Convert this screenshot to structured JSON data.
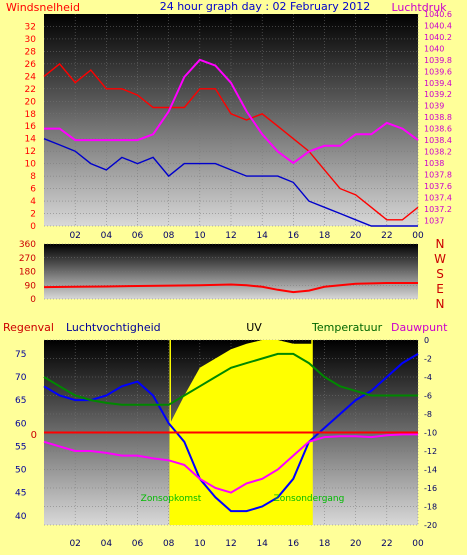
{
  "title": "24 hour graph day : 02 February 2012",
  "chart_data": [
    {
      "type": "line",
      "panel": "wind-pressure",
      "xlabel": "",
      "x_ticks": [
        "02",
        "04",
        "06",
        "08",
        "10",
        "12",
        "14",
        "16",
        "18",
        "20",
        "22",
        "00"
      ],
      "left_axis": {
        "label": "Windsnelheid",
        "range": [
          0,
          34
        ],
        "ticks": [
          0,
          2,
          4,
          6,
          8,
          10,
          12,
          14,
          16,
          18,
          20,
          22,
          24,
          26,
          28,
          30,
          32
        ],
        "color": "#ff0000"
      },
      "right_axis": {
        "label": "Luchtdruk",
        "range": [
          1036.9,
          1040.6
        ],
        "ticks": [
          1037,
          1037.2,
          1037.4,
          1037.6,
          1037.8,
          1038,
          1038.2,
          1038.4,
          1038.6,
          1038.8,
          1039,
          1039.2,
          1039.4,
          1039.6,
          1039.8,
          1040,
          1040.2,
          1040.4,
          1040.6
        ],
        "color": "#cc00cc"
      },
      "series": [
        {
          "color": "#ff0000",
          "axis": "left",
          "x": [
            0,
            1,
            2,
            3,
            4,
            5,
            6,
            7,
            8,
            9,
            10,
            11,
            12,
            13,
            14,
            15,
            16,
            17,
            18,
            19,
            20,
            21,
            22,
            23,
            24
          ],
          "y": [
            24,
            26,
            23,
            25,
            22,
            22,
            21,
            19,
            19,
            19,
            22,
            22,
            18,
            17,
            18,
            16,
            14,
            12,
            9,
            6,
            5,
            3,
            1,
            1,
            3
          ]
        },
        {
          "color": "#0000cc",
          "axis": "left",
          "x": [
            0,
            1,
            2,
            3,
            4,
            5,
            6,
            7,
            8,
            9,
            10,
            11,
            12,
            13,
            14,
            15,
            16,
            17,
            18,
            19,
            20,
            21,
            22,
            23,
            24
          ],
          "y": [
            14,
            13,
            12,
            10,
            9,
            11,
            10,
            11,
            8,
            10,
            10,
            10,
            9,
            8,
            8,
            8,
            7,
            4,
            3,
            2,
            1,
            0,
            0,
            0,
            0
          ]
        },
        {
          "color": "#ff00ff",
          "axis": "right",
          "x": [
            0,
            1,
            2,
            3,
            4,
            5,
            6,
            7,
            8,
            9,
            10,
            11,
            12,
            13,
            14,
            15,
            16,
            17,
            18,
            19,
            20,
            21,
            22,
            23,
            24
          ],
          "y": [
            1038.6,
            1038.6,
            1038.4,
            1038.4,
            1038.4,
            1038.4,
            1038.4,
            1038.5,
            1038.9,
            1039.5,
            1039.8,
            1039.7,
            1039.4,
            1038.9,
            1038.5,
            1038.2,
            1038,
            1038.2,
            1038.3,
            1038.3,
            1038.5,
            1038.5,
            1038.7,
            1038.6,
            1038.4
          ]
        }
      ]
    },
    {
      "type": "line",
      "panel": "wind-direction",
      "left_axis": {
        "range": [
          0,
          360
        ],
        "ticks": [
          0,
          90,
          180,
          270,
          360
        ]
      },
      "right_labels": [
        "N",
        "W",
        "S",
        "E",
        "N"
      ],
      "series": [
        {
          "color": "#ff0000",
          "x": [
            0,
            2,
            4,
            6,
            8,
            10,
            12,
            13,
            14,
            15,
            16,
            17,
            18,
            19,
            20,
            22,
            24
          ],
          "y": [
            78,
            80,
            82,
            85,
            88,
            90,
            95,
            90,
            80,
            60,
            45,
            55,
            80,
            90,
            100,
            105,
            105
          ]
        }
      ]
    },
    {
      "type": "line",
      "panel": "humidity-uv-temp",
      "x_ticks": [
        "02",
        "04",
        "06",
        "08",
        "10",
        "12",
        "14",
        "16",
        "18",
        "20",
        "22",
        "00"
      ],
      "left_axis": {
        "range": [
          38,
          78
        ],
        "ticks": [
          40,
          45,
          50,
          55,
          60,
          65,
          70,
          75
        ]
      },
      "right_axis": {
        "range": [
          -20,
          0
        ],
        "ticks": [
          0,
          -2,
          -4,
          -6,
          -8,
          -10,
          -12,
          -14,
          -16,
          -18,
          -20
        ]
      },
      "rain_zero_label": "0",
      "legend": [
        "Regenval",
        "Luchtvochtigheid",
        "UV",
        "Temperatuur",
        "Dauwpunt"
      ],
      "legend_colors": [
        "#cc0000",
        "#000099",
        "#000000",
        "#006600",
        "#cc00cc"
      ],
      "annotations": [
        "Zonsopkomst",
        "Zonsondergang"
      ],
      "sunrise_hour": 8.1,
      "sunset_hour": 17.2,
      "series": [
        {
          "color": "#ffff00",
          "axis": "uv",
          "x": [
            8.1,
            9,
            10,
            11,
            12,
            13,
            14,
            15,
            16,
            17,
            17.2
          ],
          "y": [
            0.55,
            0.7,
            0.85,
            0.9,
            0.95,
            0.98,
            1,
            1,
            0.98,
            0.98,
            0.98
          ]
        },
        {
          "color": "#0000ff",
          "axis": "left",
          "x": [
            0,
            1,
            2,
            3,
            4,
            5,
            6,
            7,
            8,
            8.5,
            9,
            10,
            11,
            12,
            13,
            14,
            15,
            16,
            17,
            18,
            19,
            20,
            21,
            22,
            23,
            24
          ],
          "y": [
            68,
            66,
            65,
            65,
            66,
            68,
            69,
            66,
            60,
            58,
            56,
            48,
            44,
            41,
            41,
            42,
            44,
            48,
            56,
            59,
            62,
            65,
            67,
            70,
            73,
            75
          ]
        },
        {
          "color": "#008800",
          "axis": "right",
          "x": [
            0,
            1,
            2,
            3,
            4,
            5,
            6,
            7,
            8,
            9,
            10,
            11,
            12,
            13,
            14,
            15,
            16,
            17,
            18,
            19,
            20,
            21,
            22,
            23,
            24
          ],
          "y": [
            -4,
            -5,
            -6,
            -6.5,
            -6.8,
            -7,
            -7,
            -7,
            -7,
            -6,
            -5,
            -4,
            -3,
            -2.5,
            -2,
            -1.5,
            -1.5,
            -2.5,
            -4,
            -5,
            -5.5,
            -6,
            -6,
            -6,
            -6
          ]
        },
        {
          "color": "#ff00ff",
          "axis": "right",
          "x": [
            0,
            1,
            2,
            3,
            4,
            5,
            6,
            7,
            8,
            9,
            10,
            11,
            12,
            13,
            14,
            15,
            16,
            17,
            18,
            19,
            20,
            21,
            22,
            23,
            24
          ],
          "y": [
            -11,
            -11.5,
            -12,
            -12,
            -12.2,
            -12.5,
            -12.5,
            -12.8,
            -13,
            -13.5,
            -15,
            -16,
            -16.5,
            -15.5,
            -15,
            -14,
            -12.5,
            -11,
            -10.5,
            -10.4,
            -10.4,
            -10.5,
            -10.3,
            -10.2,
            -10.2
          ]
        },
        {
          "color": "#ff0000",
          "axis": "right",
          "x": [
            0,
            24
          ],
          "y": [
            -10,
            -10
          ]
        }
      ]
    }
  ]
}
